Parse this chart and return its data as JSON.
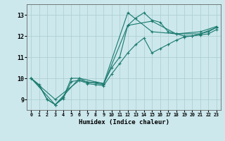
{
  "background_color": "#cce8ed",
  "grid_color": "#aacccc",
  "line_color": "#1a7a6e",
  "xlabel": "Humidex (Indice chaleur)",
  "xlim": [
    -0.5,
    23.5
  ],
  "ylim": [
    8.5,
    13.5
  ],
  "yticks": [
    9,
    10,
    11,
    12,
    13
  ],
  "xticks": [
    0,
    1,
    2,
    3,
    4,
    5,
    6,
    7,
    8,
    9,
    10,
    11,
    12,
    13,
    14,
    15,
    16,
    17,
    18,
    19,
    20,
    21,
    22,
    23
  ],
  "series": [
    {
      "x": [
        0,
        1,
        2,
        3,
        4,
        5,
        6,
        7,
        8,
        9,
        10,
        11,
        12,
        13,
        14,
        15,
        16,
        17,
        18,
        19,
        20,
        21,
        22,
        23
      ],
      "y": [
        10.0,
        9.7,
        9.0,
        8.75,
        9.1,
        10.0,
        10.0,
        9.8,
        9.8,
        9.75,
        10.5,
        11.0,
        12.5,
        12.85,
        13.1,
        12.75,
        12.65,
        12.2,
        12.1,
        12.0,
        12.0,
        12.1,
        12.2,
        12.4
      ]
    },
    {
      "x": [
        0,
        1,
        2,
        3,
        4,
        5,
        6,
        7,
        8,
        9,
        10,
        11,
        12,
        13,
        14,
        15,
        16,
        17,
        18,
        19,
        20,
        21,
        22,
        23
      ],
      "y": [
        10.0,
        9.65,
        9.0,
        8.75,
        9.05,
        9.85,
        9.9,
        9.75,
        9.7,
        9.65,
        10.2,
        10.7,
        11.2,
        11.6,
        11.9,
        11.2,
        11.4,
        11.6,
        11.8,
        11.95,
        12.0,
        12.05,
        12.1,
        12.3
      ]
    },
    {
      "x": [
        0,
        3,
        6,
        9,
        12,
        15,
        18,
        21,
        23
      ],
      "y": [
        10.0,
        9.0,
        9.9,
        9.7,
        12.5,
        12.7,
        12.1,
        12.1,
        12.4
      ]
    },
    {
      "x": [
        0,
        3,
        6,
        9,
        12,
        15,
        18,
        21,
        23
      ],
      "y": [
        10.0,
        8.75,
        10.0,
        9.75,
        13.1,
        12.2,
        12.1,
        12.2,
        12.45
      ]
    }
  ]
}
